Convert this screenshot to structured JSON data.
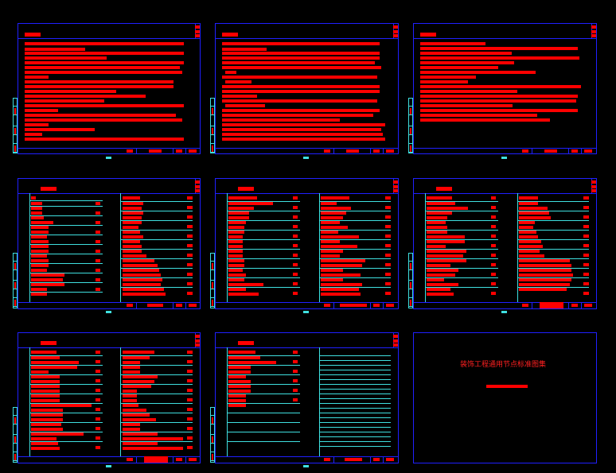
{
  "viewport": {
    "background": "#000000",
    "frame_color": "#2020ff",
    "text_color": "#ff0000",
    "line_color": "#3fe0e0"
  },
  "sheets_count": 9,
  "cover": {
    "title": "装饰工程通用节点标准图集"
  }
}
